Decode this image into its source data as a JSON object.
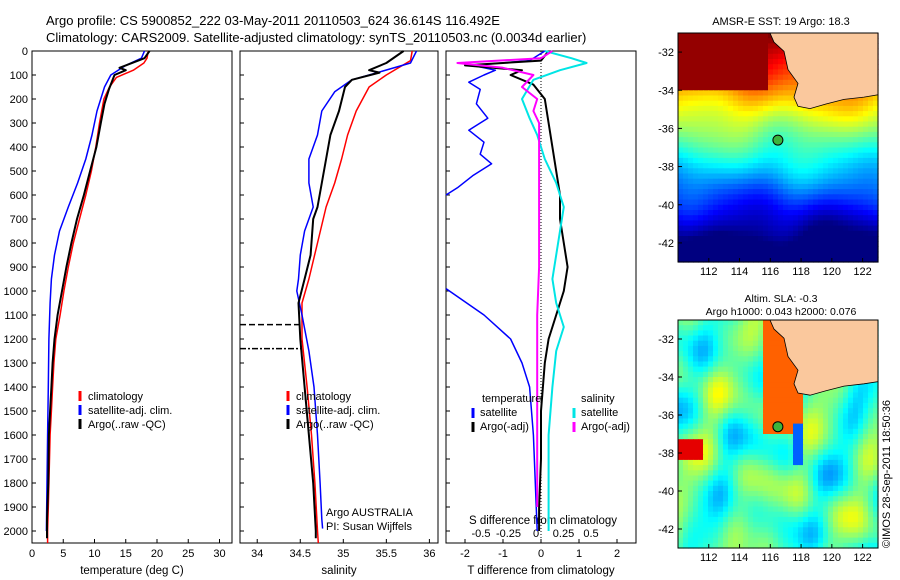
{
  "header": {
    "line1": "Argo profile: CS 5900852_222 03-May-2011 20110503_624 36.614S 116.492E",
    "line2": "Climatology: CARS2009. Satellite-adjusted climatology: synTS_20110503.nc (0.0034d earlier)"
  },
  "credit": "©IMOS 28-Sep-2011 18:50:36",
  "colors": {
    "climatology": "#ff0000",
    "satellite": "#0000ff",
    "argo": "#000000",
    "salinity_sat": "#00e5e5",
    "salinity_argo": "#ff00ff"
  },
  "chart_data": [
    {
      "type": "line",
      "xlabel": "temperature (deg C)",
      "ylabel": "",
      "xlim": [
        0,
        32
      ],
      "ylim": [
        2050,
        0
      ],
      "xticks": [
        0,
        5,
        10,
        15,
        20,
        25,
        30
      ],
      "yticks": [
        0,
        100,
        200,
        300,
        400,
        500,
        600,
        700,
        800,
        900,
        1000,
        1100,
        1200,
        1300,
        1400,
        1500,
        1600,
        1700,
        1800,
        1900,
        2000
      ],
      "legend": [
        "climatology",
        "satellite-adj. clim.",
        "Argo(..raw -QC)"
      ],
      "legend_position": "bottom-right",
      "series": [
        {
          "name": "climatology",
          "color": "#ff0000",
          "points": [
            [
              18.6,
              0
            ],
            [
              18.4,
              30
            ],
            [
              17.9,
              50
            ],
            [
              16.2,
              80
            ],
            [
              13.5,
              110
            ],
            [
              12.4,
              150
            ],
            [
              11.5,
              200
            ],
            [
              10.8,
              300
            ],
            [
              10.2,
              400
            ],
            [
              9.5,
              500
            ],
            [
              8.6,
              600
            ],
            [
              7.6,
              700
            ],
            [
              6.6,
              800
            ],
            [
              5.8,
              900
            ],
            [
              5.1,
              1000
            ],
            [
              4.5,
              1100
            ],
            [
              3.8,
              1200
            ],
            [
              3.5,
              1300
            ],
            [
              3.3,
              1400
            ],
            [
              3.1,
              1500
            ],
            [
              2.9,
              1600
            ],
            [
              2.8,
              1700
            ],
            [
              2.7,
              1800
            ],
            [
              2.6,
              1900
            ],
            [
              2.5,
              2000
            ],
            [
              2.5,
              2050
            ]
          ]
        },
        {
          "name": "satellite-adj. clim.",
          "color": "#0000ff",
          "points": [
            [
              18.0,
              0
            ],
            [
              17.5,
              30
            ],
            [
              15.0,
              60
            ],
            [
              12.6,
              100
            ],
            [
              11.6,
              150
            ],
            [
              10.4,
              250
            ],
            [
              9.6,
              350
            ],
            [
              8.6,
              450
            ],
            [
              7.3,
              550
            ],
            [
              5.8,
              650
            ],
            [
              4.4,
              750
            ],
            [
              3.6,
              850
            ],
            [
              3.1,
              950
            ],
            [
              2.9,
              1050
            ],
            [
              2.7,
              1200
            ],
            [
              2.6,
              1400
            ],
            [
              2.5,
              1600
            ],
            [
              2.4,
              1800
            ],
            [
              2.3,
              2000
            ]
          ]
        },
        {
          "name": "Argo(..raw -QC)",
          "color": "#000000",
          "points": [
            [
              18.8,
              0
            ],
            [
              18.0,
              30
            ],
            [
              14.0,
              70
            ],
            [
              15.0,
              80
            ],
            [
              13.2,
              100
            ],
            [
              12.3,
              160
            ],
            [
              11.6,
              220
            ],
            [
              11.0,
              300
            ],
            [
              10.3,
              400
            ],
            [
              9.3,
              500
            ],
            [
              8.3,
              600
            ],
            [
              7.2,
              700
            ],
            [
              6.3,
              800
            ],
            [
              5.5,
              900
            ],
            [
              4.8,
              1000
            ],
            [
              4.1,
              1100
            ],
            [
              3.6,
              1200
            ],
            [
              3.3,
              1300
            ],
            [
              3.1,
              1400
            ],
            [
              2.9,
              1500
            ],
            [
              2.7,
              1600
            ],
            [
              2.6,
              1800
            ],
            [
              2.4,
              1950
            ],
            [
              2.4,
              2030
            ]
          ]
        }
      ]
    },
    {
      "type": "line",
      "xlabel": "salinity",
      "xlim": [
        33.8,
        36.1
      ],
      "ylim": [
        2050,
        0
      ],
      "xticks": [
        34,
        34.5,
        35,
        35.5,
        36
      ],
      "xtick_labels": [
        "34",
        "34.5",
        "35",
        "35.5",
        "36"
      ],
      "legend": [
        "climatology",
        "satellite-adj. clim.",
        "Argo(..raw -QC)"
      ],
      "legend_position": "bottom-right",
      "annotations": [
        "Argo AUSTRALIA",
        "PI: Susan Wijffels"
      ],
      "qc_marker_depths": [
        1140,
        1240
      ],
      "series": [
        {
          "name": "climatology",
          "color": "#ff0000",
          "points": [
            [
              35.8,
              0
            ],
            [
              35.78,
              40
            ],
            [
              35.5,
              100
            ],
            [
              35.3,
              150
            ],
            [
              35.15,
              250
            ],
            [
              35.05,
              350
            ],
            [
              34.98,
              450
            ],
            [
              34.9,
              550
            ],
            [
              34.8,
              650
            ],
            [
              34.7,
              800
            ],
            [
              34.6,
              950
            ],
            [
              34.52,
              1050
            ],
            [
              34.52,
              1200
            ],
            [
              34.58,
              1400
            ],
            [
              34.63,
              1600
            ],
            [
              34.67,
              1800
            ],
            [
              34.7,
              2000
            ],
            [
              34.71,
              2050
            ]
          ]
        },
        {
          "name": "satellite-adj. clim.",
          "color": "#0000ff",
          "points": [
            [
              35.85,
              0
            ],
            [
              35.78,
              50
            ],
            [
              35.3,
              100
            ],
            [
              35.1,
              120
            ],
            [
              34.9,
              170
            ],
            [
              34.75,
              250
            ],
            [
              34.7,
              350
            ],
            [
              34.6,
              450
            ],
            [
              34.6,
              550
            ],
            [
              34.65,
              650
            ],
            [
              34.55,
              750
            ],
            [
              34.5,
              850
            ],
            [
              34.48,
              950
            ],
            [
              34.46,
              1000
            ],
            [
              34.52,
              1100
            ],
            [
              34.6,
              1250
            ],
            [
              34.66,
              1400
            ],
            [
              34.7,
              1600
            ],
            [
              34.73,
              1800
            ],
            [
              34.75,
              1950
            ],
            [
              34.76,
              1990
            ]
          ]
        },
        {
          "name": "Argo(..raw -QC)",
          "color": "#000000",
          "points": [
            [
              35.7,
              0
            ],
            [
              35.5,
              50
            ],
            [
              35.3,
              80
            ],
            [
              35.42,
              90
            ],
            [
              35.1,
              120
            ],
            [
              35.02,
              150
            ],
            [
              34.95,
              250
            ],
            [
              34.85,
              350
            ],
            [
              34.8,
              450
            ],
            [
              34.75,
              550
            ],
            [
              34.7,
              650
            ],
            [
              34.65,
              700
            ],
            [
              34.62,
              850
            ],
            [
              34.55,
              950
            ],
            [
              34.48,
              1050
            ],
            [
              34.5,
              1200
            ],
            [
              34.55,
              1400
            ],
            [
              34.6,
              1600
            ],
            [
              34.65,
              1800
            ],
            [
              34.68,
              2000
            ],
            [
              34.68,
              2030
            ]
          ]
        }
      ]
    },
    {
      "type": "line",
      "xlabel": "T difference from climatology",
      "xlabel_top": "S difference from climatology",
      "xlim": [
        -2.5,
        2.5
      ],
      "ylim": [
        2050,
        0
      ],
      "xticks_bottom": [
        -2,
        -1,
        0,
        1,
        2
      ],
      "xtick_labels_bottom": [
        "-2",
        "-1",
        "0",
        "1",
        "2"
      ],
      "xticks_top": [
        -0.5,
        -0.25,
        0,
        0.25,
        0.5
      ],
      "xtick_labels_top": [
        "-0.5",
        "-0.25",
        "0",
        "0.25",
        "0.5"
      ],
      "legend_temperature": {
        "title": "temperature",
        "items": [
          "satellite",
          "Argo(-adj)"
        ]
      },
      "legend_salinity": {
        "title": "salinity",
        "items": [
          "satellite",
          "Argo(-adj)"
        ]
      },
      "series": [
        {
          "name": "satellite",
          "quantity": "temperature",
          "color": "#0000ff",
          "points": [
            [
              0.1,
              0
            ],
            [
              -0.3,
              40
            ],
            [
              -1.8,
              60
            ],
            [
              -1.2,
              80
            ],
            [
              -1.5,
              100
            ],
            [
              -1.9,
              130
            ],
            [
              -1.6,
              160
            ],
            [
              -1.7,
              220
            ],
            [
              -1.4,
              280
            ],
            [
              -1.9,
              330
            ],
            [
              -1.5,
              380
            ],
            [
              -1.6,
              430
            ],
            [
              -1.3,
              470
            ],
            [
              -1.8,
              520
            ],
            [
              -2.2,
              570
            ],
            [
              -2.5,
              600
            ]
          ]
        },
        {
          "name": "satellite",
          "quantity": "temperature",
          "color": "#0000ff",
          "points": [
            [
              -2.5,
              990
            ],
            [
              -1.5,
              1100
            ],
            [
              -0.8,
              1200
            ],
            [
              -0.5,
              1300
            ],
            [
              -0.3,
              1400
            ],
            [
              -0.2,
              1600
            ],
            [
              -0.15,
              1800
            ],
            [
              -0.1,
              2000
            ]
          ]
        },
        {
          "name": "Argo(-adj)",
          "quantity": "temperature",
          "color": "#000000",
          "points": [
            [
              0.2,
              0
            ],
            [
              0.0,
              40
            ],
            [
              -2.0,
              60
            ],
            [
              -0.5,
              80
            ],
            [
              -0.8,
              100
            ],
            [
              -0.2,
              140
            ],
            [
              0.1,
              200
            ],
            [
              0.2,
              300
            ],
            [
              0.3,
              400
            ],
            [
              0.4,
              500
            ],
            [
              0.5,
              600
            ],
            [
              0.5,
              700
            ],
            [
              0.6,
              800
            ],
            [
              0.7,
              900
            ],
            [
              0.6,
              1000
            ],
            [
              0.4,
              1100
            ],
            [
              0.2,
              1200
            ],
            [
              0.1,
              1300
            ],
            [
              0.0,
              1500
            ],
            [
              0.0,
              1700
            ],
            [
              -0.05,
              1900
            ],
            [
              -0.05,
              2000
            ]
          ]
        },
        {
          "name": "satellite",
          "quantity": "salinity",
          "color": "#00e5e5",
          "points": [
            [
              0.1,
              0
            ],
            [
              0.8,
              30
            ],
            [
              1.2,
              50
            ],
            [
              0.5,
              80
            ],
            [
              -0.2,
              120
            ],
            [
              -0.5,
              200
            ],
            [
              -0.3,
              280
            ],
            [
              -0.1,
              350
            ],
            [
              0.1,
              450
            ],
            [
              0.4,
              550
            ],
            [
              0.6,
              650
            ],
            [
              0.5,
              750
            ],
            [
              0.4,
              850
            ],
            [
              0.3,
              950
            ],
            [
              0.4,
              1050
            ],
            [
              0.6,
              1150
            ],
            [
              0.4,
              1250
            ],
            [
              0.3,
              1400
            ],
            [
              0.2,
              1600
            ],
            [
              0.2,
              1800
            ],
            [
              0.2,
              2000
            ]
          ]
        },
        {
          "name": "Argo(-adj)",
          "quantity": "salinity",
          "color": "#ff00ff",
          "points": [
            [
              0.3,
              0
            ],
            [
              0.0,
              30
            ],
            [
              -2.2,
              50
            ],
            [
              -1.0,
              70
            ],
            [
              -0.2,
              100
            ],
            [
              -0.5,
              150
            ],
            [
              -0.1,
              200
            ],
            [
              -0.2,
              250
            ],
            [
              -0.05,
              300
            ],
            [
              -0.05,
              500
            ],
            [
              -0.05,
              700
            ],
            [
              -0.05,
              900
            ],
            [
              -0.1,
              1100
            ],
            [
              -0.1,
              1300
            ],
            [
              -0.1,
              1600
            ],
            [
              -0.1,
              1900
            ]
          ]
        }
      ]
    },
    {
      "type": "heatmap",
      "title": "AMSR-E SST: 19 Argo: 18.3",
      "x_tick_labels": [
        "112",
        "114",
        "116",
        "118",
        "120",
        "122"
      ],
      "y_tick_labels": [
        "-32",
        "-34",
        "-36",
        "-38",
        "-40",
        "-42"
      ],
      "xlim": [
        110,
        123
      ],
      "ylim": [
        -43,
        -31
      ],
      "marker": {
        "lon": 116.492,
        "lat": -36.614
      }
    },
    {
      "type": "heatmap",
      "title_lines": [
        "Altim. SLA: -0.3",
        "Argo h1000: 0.043 h2000: 0.076"
      ],
      "x_tick_labels": [
        "112",
        "114",
        "116",
        "118",
        "120",
        "122"
      ],
      "y_tick_labels": [
        "-32",
        "-34",
        "-36",
        "-38",
        "-40",
        "-42"
      ],
      "xlim": [
        110,
        123
      ],
      "ylim": [
        -43,
        -31
      ],
      "marker": {
        "lon": 116.492,
        "lat": -36.614
      }
    }
  ]
}
